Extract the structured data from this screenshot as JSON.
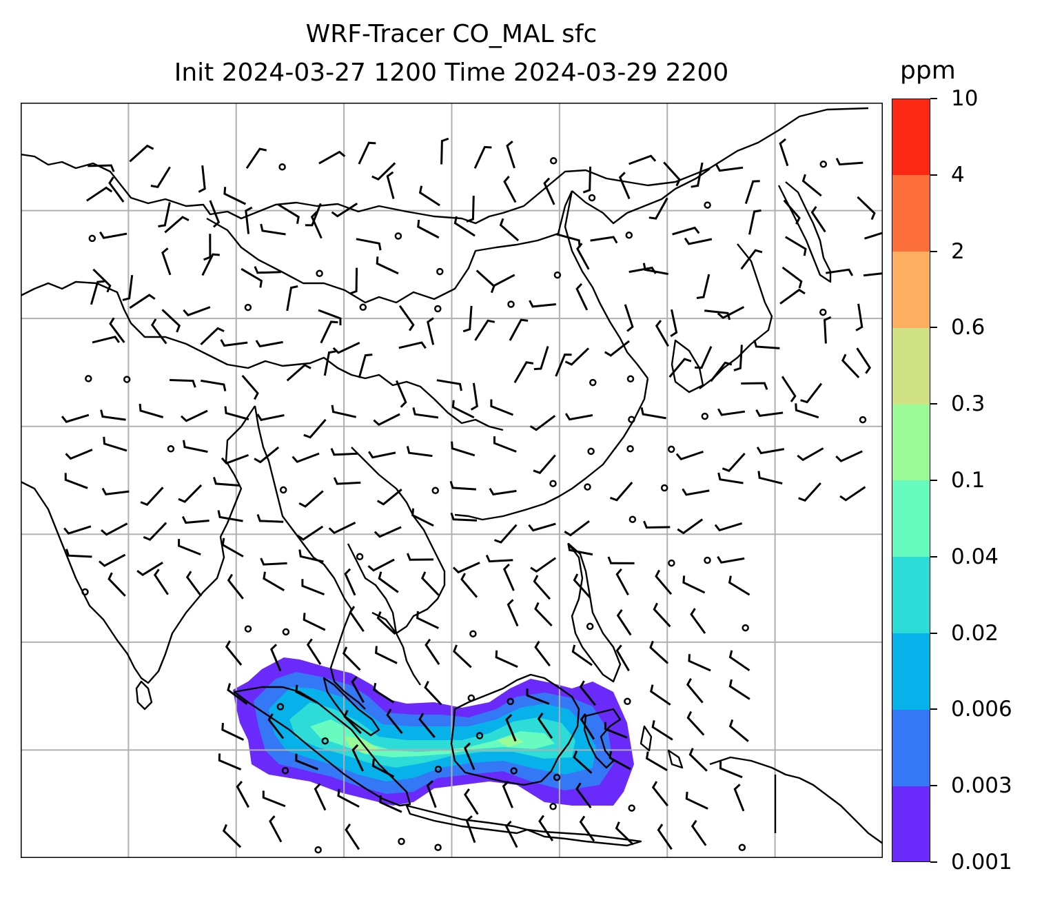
{
  "title": {
    "line1": "WRF-Tracer CO_MAL sfc",
    "line2": "Init 2024-03-27 1200 Time 2024-03-29 2200"
  },
  "colorbar": {
    "units": "ppm",
    "levels": [
      "0.001",
      "0.003",
      "0.006",
      "0.02",
      "0.04",
      "0.1",
      "0.3",
      "0.6",
      "2",
      "4",
      "10"
    ],
    "colors": [
      "#6a2bfa",
      "#3478f6",
      "#06b2e9",
      "#2ddbd7",
      "#67fbbf",
      "#9afa96",
      "#d0e185",
      "#fdae60",
      "#fd6f3a",
      "#fb2813"
    ]
  },
  "map": {
    "projection": "lat-lon",
    "extent_lon": [
      60,
      140
    ],
    "extent_lat": [
      -10,
      25
    ],
    "gridlines": true,
    "grid_lon": [
      70,
      80,
      90,
      100,
      110,
      120,
      130
    ],
    "grid_lat": [
      -5,
      0,
      5,
      10,
      15,
      20
    ],
    "plume_region": "Maritime Southeast Asia (Sumatra / Borneo)",
    "overlay": "wind barbs and calm-wind circles",
    "colors": {
      "coast": "#000000",
      "grid": "#b0b0b0",
      "barb": "#000000"
    }
  }
}
